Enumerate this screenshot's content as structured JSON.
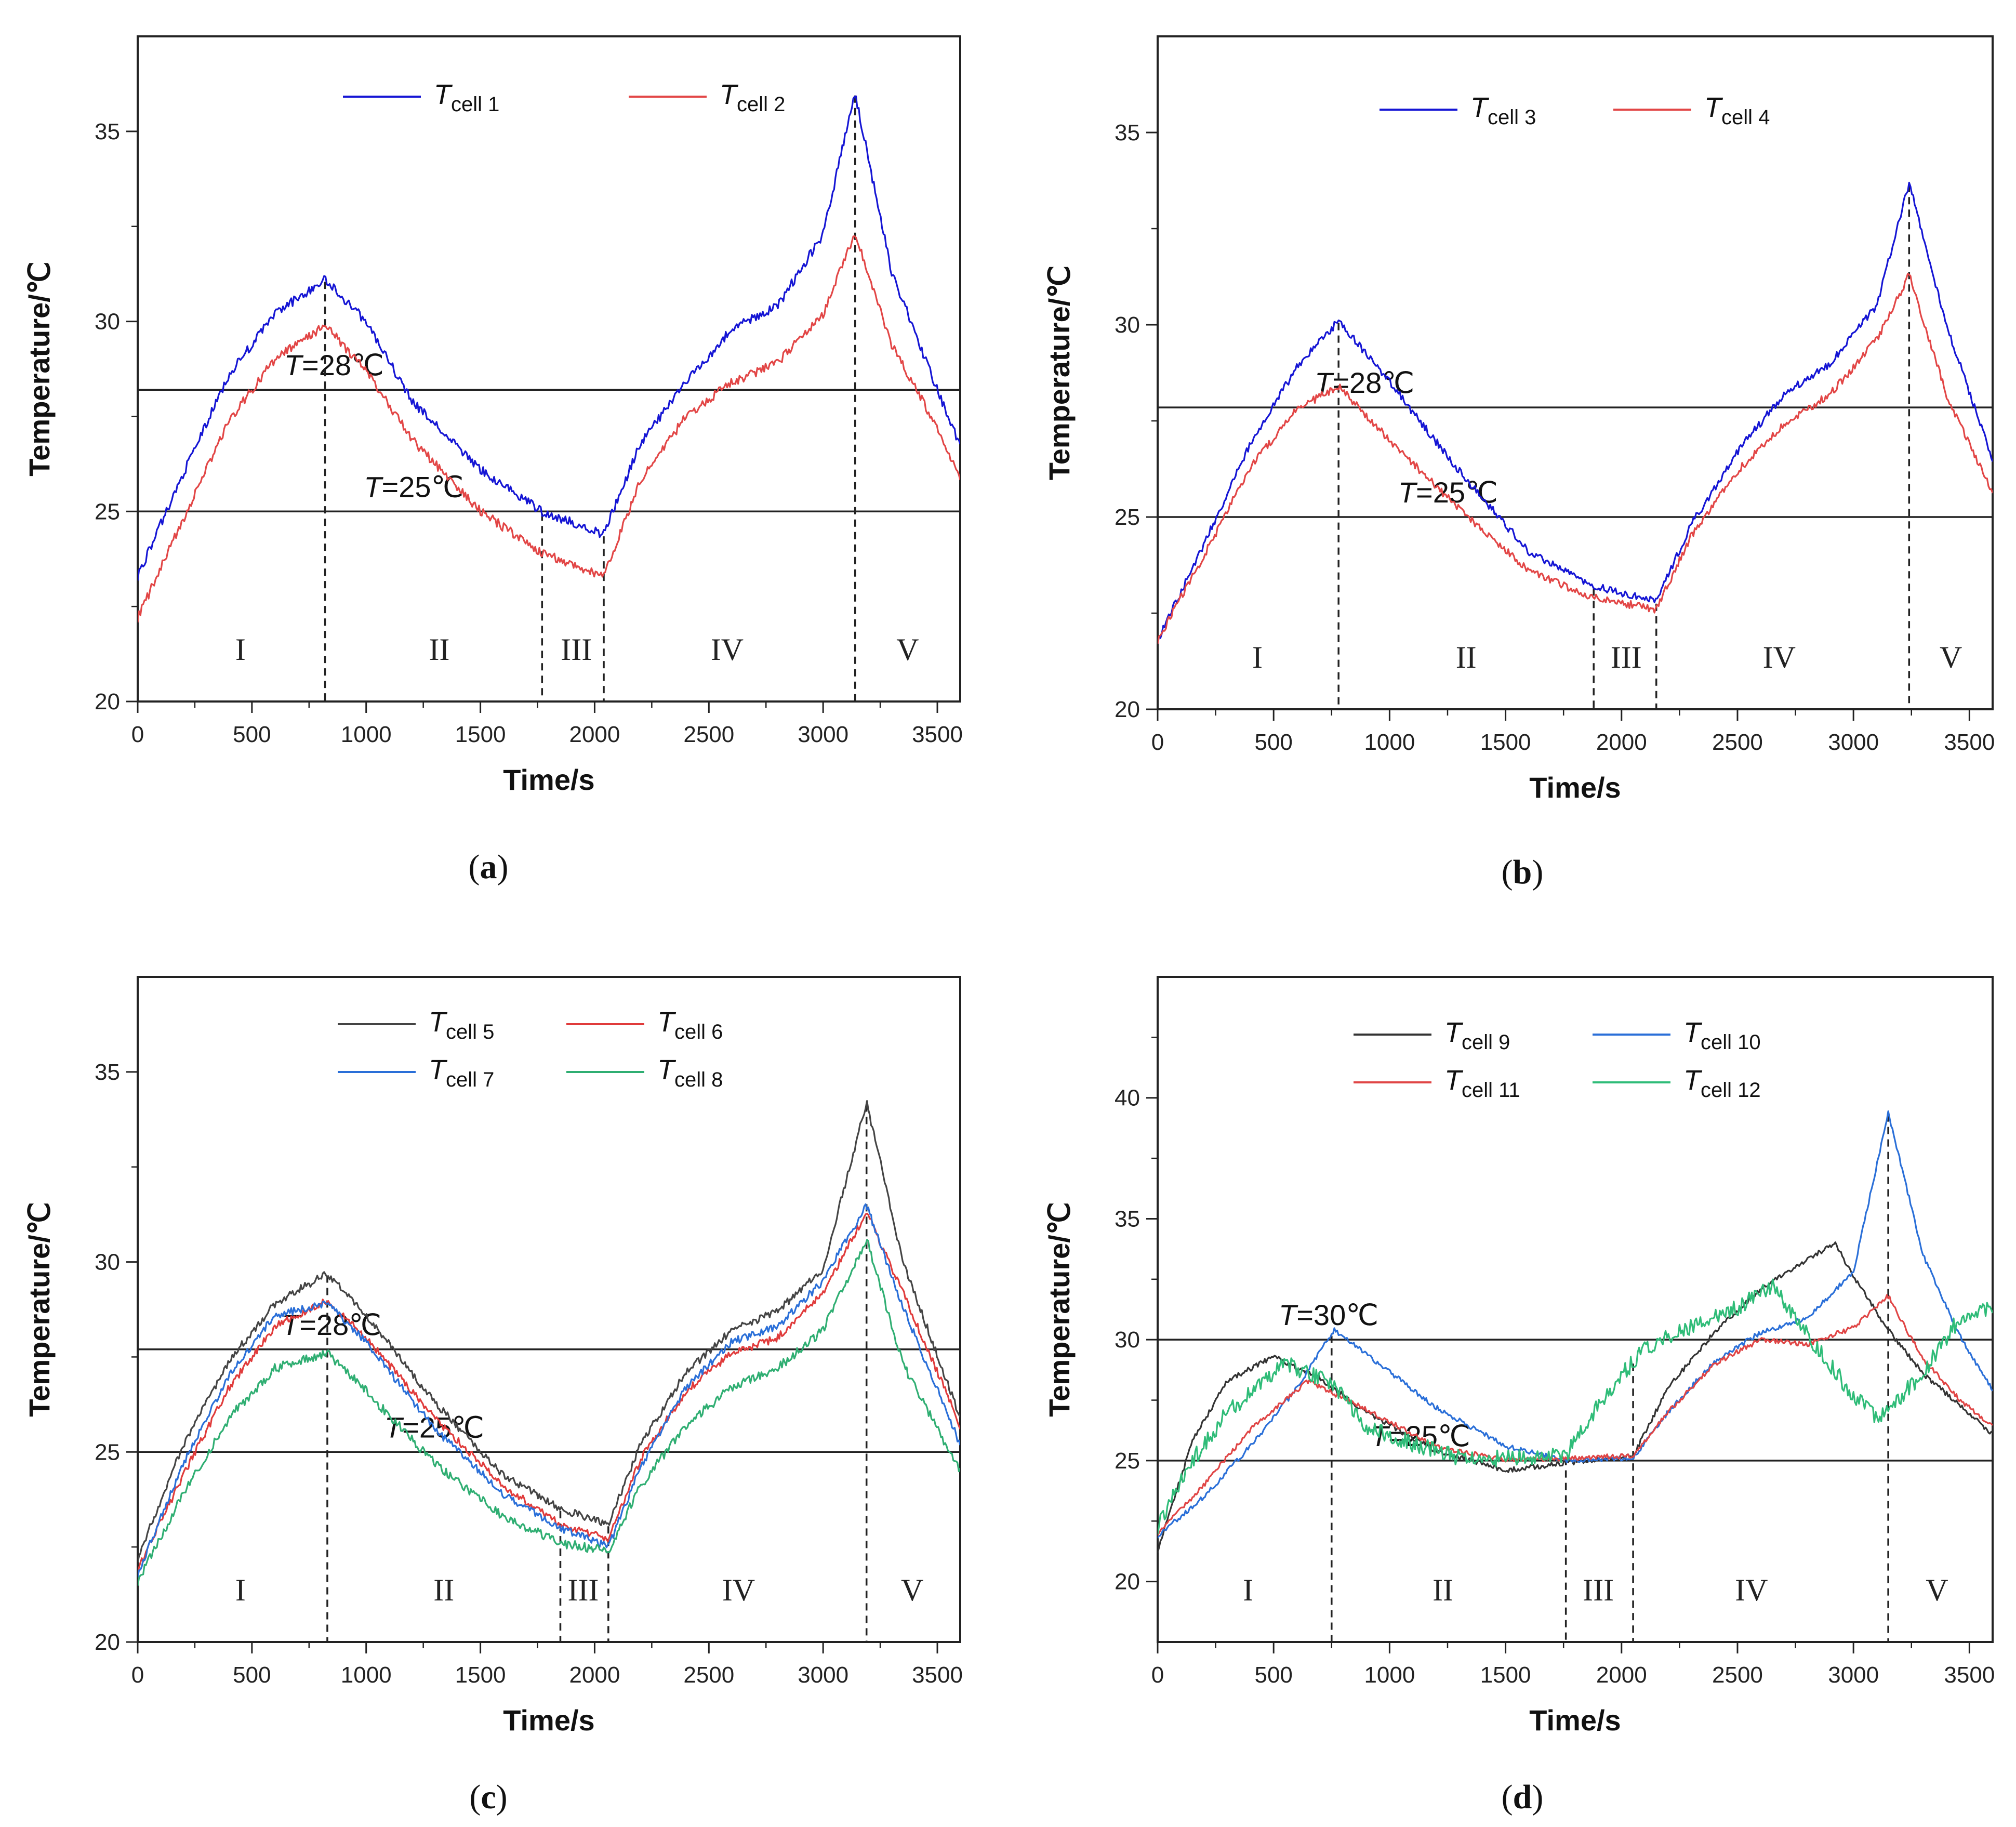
{
  "chart_data": [
    {
      "type": "line",
      "panel_label": "a",
      "xlabel": "Time/s",
      "ylabel": "Temperature/℃",
      "xlim": [
        0,
        3600
      ],
      "ylim": [
        20,
        37.5
      ],
      "xticks": [
        0,
        500,
        1000,
        1500,
        2000,
        2500,
        3000,
        3500
      ],
      "yticks": [
        20,
        25,
        30,
        35
      ],
      "legend": "top-center",
      "hlines": [
        {
          "y": 28.2,
          "var": "T",
          "text": "=28℃"
        },
        {
          "y": 25.0,
          "var": "T",
          "text": "=25℃"
        }
      ],
      "vlines": [
        820,
        1770,
        2040,
        3140
      ],
      "phases": [
        {
          "label": "I",
          "x": 450
        },
        {
          "label": "II",
          "x": 1320
        },
        {
          "label": "III",
          "x": 1920
        },
        {
          "label": "IV",
          "x": 2580
        },
        {
          "label": "V",
          "x": 3370
        }
      ],
      "series": [
        {
          "name": "T",
          "sub": "cell 1",
          "color": "#1515d4",
          "noise": 0.12,
          "x": [
            0,
            200,
            400,
            600,
            820,
            1000,
            1200,
            1500,
            1770,
            2040,
            2200,
            2400,
            2600,
            2800,
            3000,
            3140,
            3300,
            3500,
            3600
          ],
          "y": [
            23.3,
            26.0,
            28.6,
            30.2,
            31.1,
            30.0,
            27.9,
            26.1,
            25.0,
            24.4,
            26.8,
            28.4,
            29.8,
            30.4,
            32.3,
            36.0,
            31.3,
            28.2,
            26.7
          ]
        },
        {
          "name": "T",
          "sub": "cell 2",
          "color": "#e24646",
          "noise": 0.12,
          "x": [
            0,
            200,
            400,
            600,
            820,
            1000,
            1200,
            1500,
            1770,
            2040,
            2200,
            2400,
            2600,
            2800,
            3000,
            3140,
            3300,
            3500,
            3600
          ],
          "y": [
            22.2,
            24.8,
            27.4,
            29.0,
            29.9,
            28.7,
            26.9,
            25.0,
            23.9,
            23.3,
            25.8,
            27.5,
            28.4,
            28.9,
            30.2,
            32.3,
            29.4,
            27.2,
            25.9
          ]
        }
      ]
    },
    {
      "type": "line",
      "panel_label": "b",
      "xlabel": "Time/s",
      "ylabel": "Temperature/℃",
      "xlim": [
        0,
        3600
      ],
      "ylim": [
        20,
        37.5
      ],
      "xticks": [
        0,
        500,
        1000,
        1500,
        2000,
        2500,
        3000,
        3500
      ],
      "yticks": [
        20,
        25,
        30,
        35
      ],
      "legend": "top-center",
      "hlines": [
        {
          "y": 27.85,
          "var": "T",
          "text": "=28℃"
        },
        {
          "y": 25.0,
          "var": "T",
          "text": "=25℃"
        }
      ],
      "vlines": [
        780,
        1880,
        2150,
        3240
      ],
      "phases": [
        {
          "label": "I",
          "x": 430
        },
        {
          "label": "II",
          "x": 1330
        },
        {
          "label": "III",
          "x": 2020
        },
        {
          "label": "IV",
          "x": 2680
        },
        {
          "label": "V",
          "x": 3420
        }
      ],
      "series": [
        {
          "name": "T",
          "sub": "cell 3",
          "color": "#1515d4",
          "noise": 0.1,
          "x": [
            0,
            200,
            400,
            600,
            780,
            1000,
            1300,
            1600,
            1880,
            2150,
            2300,
            2500,
            2700,
            2900,
            3100,
            3240,
            3400,
            3600
          ],
          "y": [
            21.8,
            24.3,
            26.9,
            28.9,
            30.1,
            28.5,
            26.2,
            24.1,
            23.2,
            22.8,
            24.8,
            26.7,
            28.2,
            29.0,
            30.5,
            33.7,
            30.0,
            26.5
          ]
        },
        {
          "name": "T",
          "sub": "cell 4",
          "color": "#e24646",
          "noise": 0.1,
          "x": [
            0,
            200,
            400,
            600,
            780,
            1000,
            1300,
            1600,
            1880,
            2150,
            2300,
            2500,
            2700,
            2900,
            3100,
            3240,
            3400,
            3600
          ],
          "y": [
            21.8,
            24.0,
            26.3,
            27.8,
            28.4,
            27.0,
            25.2,
            23.6,
            22.9,
            22.6,
            24.5,
            26.2,
            27.4,
            28.2,
            29.6,
            31.3,
            28.2,
            25.6
          ]
        }
      ]
    },
    {
      "type": "line",
      "panel_label": "c",
      "xlabel": "Time/s",
      "ylabel": "Temperature/℃",
      "xlim": [
        0,
        3600
      ],
      "ylim": [
        20,
        37.5
      ],
      "xticks": [
        0,
        500,
        1000,
        1500,
        2000,
        2500,
        3000,
        3500
      ],
      "yticks": [
        20,
        25,
        30,
        35
      ],
      "legend": "top-center",
      "hlines": [
        {
          "y": 27.7,
          "var": "T",
          "text": "=28℃"
        },
        {
          "y": 25.0,
          "var": "T",
          "text": "=25℃"
        }
      ],
      "vlines": [
        830,
        1850,
        2060,
        3190
      ],
      "phases": [
        {
          "label": "I",
          "x": 450
        },
        {
          "label": "II",
          "x": 1340
        },
        {
          "label": "III",
          "x": 1950
        },
        {
          "label": "IV",
          "x": 2630
        },
        {
          "label": "V",
          "x": 3390
        }
      ],
      "series": [
        {
          "name": "T",
          "sub": "cell 5",
          "color": "#444444",
          "noise": 0.1,
          "x": [
            0,
            200,
            400,
            600,
            830,
            1000,
            1300,
            1600,
            1850,
            2060,
            2200,
            2400,
            2600,
            2800,
            3000,
            3190,
            3350,
            3600
          ],
          "y": [
            22.2,
            25.2,
            27.4,
            28.9,
            29.7,
            28.6,
            26.3,
            24.4,
            23.5,
            23.1,
            25.2,
            27.1,
            28.2,
            28.7,
            29.8,
            34.2,
            30.0,
            25.9
          ]
        },
        {
          "name": "T",
          "sub": "cell 6",
          "color": "#e03b3b",
          "noise": 0.1,
          "x": [
            0,
            200,
            400,
            600,
            830,
            1000,
            1300,
            1600,
            1850,
            2060,
            2200,
            2400,
            2600,
            2800,
            3000,
            3190,
            3350,
            3600
          ],
          "y": [
            21.9,
            24.4,
            26.7,
            28.3,
            29.0,
            28.0,
            25.9,
            24.1,
            23.1,
            22.7,
            24.8,
            26.6,
            27.6,
            28.0,
            29.2,
            31.3,
            29.2,
            25.7
          ]
        },
        {
          "name": "T",
          "sub": "cell 7",
          "color": "#2a6fd8",
          "noise": 0.1,
          "x": [
            0,
            200,
            400,
            600,
            830,
            1000,
            1300,
            1600,
            1850,
            2060,
            2200,
            2400,
            2600,
            2800,
            3000,
            3190,
            3350,
            3600
          ],
          "y": [
            21.8,
            24.7,
            27.0,
            28.6,
            28.9,
            27.9,
            25.6,
            23.9,
            23.0,
            22.5,
            24.6,
            26.7,
            27.9,
            28.3,
            29.5,
            31.5,
            28.8,
            25.2
          ]
        },
        {
          "name": "T",
          "sub": "cell 8",
          "color": "#2fae72",
          "noise": 0.12,
          "x": [
            0,
            200,
            400,
            600,
            830,
            1000,
            1300,
            1600,
            1850,
            2060,
            2200,
            2400,
            2600,
            2800,
            3000,
            3190,
            3350,
            3600
          ],
          "y": [
            21.6,
            23.9,
            25.9,
            27.2,
            27.6,
            26.6,
            24.7,
            23.3,
            22.6,
            22.4,
            24.1,
            25.7,
            26.7,
            27.2,
            28.2,
            30.6,
            27.3,
            24.5
          ]
        }
      ]
    },
    {
      "type": "line",
      "panel_label": "d",
      "xlabel": "Time/s",
      "ylabel": "Temperature/℃",
      "xlim": [
        0,
        3600
      ],
      "ylim": [
        17.5,
        45
      ],
      "xticks": [
        0,
        500,
        1000,
        1500,
        2000,
        2500,
        3000,
        3500
      ],
      "yticks": [
        20,
        25,
        30,
        35,
        40
      ],
      "legend": "top-center",
      "hlines": [
        {
          "y": 30.0,
          "var": "T",
          "text": "=30℃"
        },
        {
          "y": 25.0,
          "var": "T",
          "text": "=25℃"
        }
      ],
      "vlines": [
        750,
        1760,
        2050,
        3150
      ],
      "phases": [
        {
          "label": "I",
          "x": 390
        },
        {
          "label": "II",
          "x": 1230
        },
        {
          "label": "III",
          "x": 1900
        },
        {
          "label": "IV",
          "x": 2560
        },
        {
          "label": "V",
          "x": 3360
        }
      ],
      "series": [
        {
          "name": "T",
          "sub": "cell 9",
          "color": "#333333",
          "noise": 0.1,
          "x": [
            0,
            150,
            300,
            500,
            700,
            900,
            1200,
            1500,
            1760,
            2050,
            2200,
            2400,
            2600,
            2800,
            2920,
            3000,
            3150,
            3300,
            3600
          ],
          "y": [
            21.3,
            25.8,
            28.3,
            29.3,
            28.4,
            27.0,
            25.4,
            24.6,
            24.9,
            25.2,
            28.0,
            30.3,
            32.1,
            33.3,
            34.0,
            32.6,
            30.4,
            28.6,
            26.1
          ]
        },
        {
          "name": "T",
          "sub": "cell 10",
          "color": "#2a6fd8",
          "noise": 0.1,
          "x": [
            0,
            200,
            400,
            600,
            760,
            900,
            1200,
            1500,
            1760,
            2050,
            2200,
            2400,
            2600,
            2800,
            3000,
            3150,
            3300,
            3450,
            3600
          ],
          "y": [
            21.9,
            23.5,
            25.6,
            28.0,
            30.4,
            29.4,
            27.2,
            25.6,
            25.0,
            25.1,
            27.0,
            29.1,
            30.3,
            30.9,
            32.8,
            39.4,
            33.5,
            30.3,
            27.9
          ]
        },
        {
          "name": "T",
          "sub": "cell 11",
          "color": "#e04545",
          "noise": 0.1,
          "x": [
            0,
            200,
            400,
            650,
            900,
            1200,
            1500,
            1760,
            2050,
            2200,
            2400,
            2600,
            2800,
            3000,
            3150,
            3300,
            3450,
            3600
          ],
          "y": [
            22.0,
            24.0,
            26.3,
            28.3,
            27.1,
            25.6,
            25.0,
            25.1,
            25.2,
            27.0,
            29.0,
            30.0,
            29.8,
            30.5,
            31.8,
            29.2,
            27.6,
            26.4
          ]
        },
        {
          "name": "T",
          "sub": "cell 12",
          "color": "#2fbc78",
          "noise": 0.35,
          "x": [
            0,
            150,
            300,
            550,
            750,
            900,
            1100,
            1300,
            1500,
            1760,
            1900,
            2100,
            2300,
            2500,
            2650,
            2800,
            3000,
            3100,
            3300,
            3450,
            3600
          ],
          "y": [
            22.3,
            25.0,
            27.0,
            29.0,
            28.2,
            26.4,
            25.7,
            25.1,
            25.1,
            25.2,
            27.3,
            29.7,
            30.5,
            31.3,
            32.3,
            30.2,
            27.7,
            26.7,
            28.6,
            30.8,
            31.3
          ]
        }
      ]
    }
  ]
}
